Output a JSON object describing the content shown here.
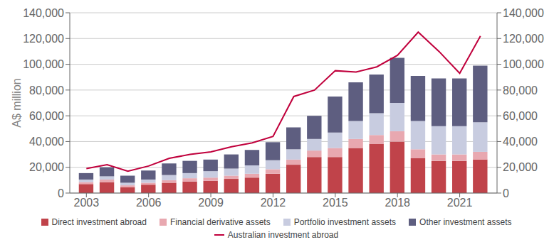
{
  "chart_data": {
    "type": "bar",
    "stacked": true,
    "x": [
      2003,
      2004,
      2005,
      2006,
      2007,
      2008,
      2009,
      2010,
      2011,
      2012,
      2013,
      2014,
      2015,
      2016,
      2017,
      2018,
      2019,
      2020,
      2021,
      2022
    ],
    "xlim": [
      2002.2,
      2022.8
    ],
    "xticks": [
      2003,
      2006,
      2009,
      2012,
      2015,
      2018,
      2021
    ],
    "ylabel": "A$ million",
    "ylim": [
      0,
      140000
    ],
    "yticks": [
      0,
      {
        "value": 20000,
        "label": "20,000"
      },
      {
        "value": 40000,
        "label": "40,000"
      },
      {
        "value": 60000,
        "label": "60,000"
      },
      {
        "value": 80000,
        "label": "80,000"
      },
      {
        "value": 100000,
        "label": "100,000"
      },
      {
        "value": 120000,
        "label": "120,000"
      },
      {
        "value": 140000,
        "label": "140,000"
      }
    ],
    "y2lim": [
      0,
      140000
    ],
    "y2ticks": [
      0,
      {
        "value": 20000,
        "label": "20,000"
      },
      {
        "value": 40000,
        "label": "40,000"
      },
      {
        "value": 60000,
        "label": "60,000"
      },
      {
        "value": 80000,
        "label": "80,000"
      },
      {
        "value": 100000,
        "label": "100,000"
      },
      {
        "value": 120000,
        "label": "120,000"
      },
      {
        "value": 140000,
        "label": "140,000"
      }
    ],
    "grid": true,
    "legend": "bottom",
    "series": [
      {
        "name": "Direct investment abroad",
        "type": "bar",
        "color": "#c0434a",
        "values": [
          7000,
          8500,
          4500,
          6500,
          8000,
          9000,
          9500,
          11000,
          12000,
          15000,
          22000,
          28000,
          28000,
          35000,
          38000,
          40000,
          27000,
          25000,
          25000,
          26000
        ]
      },
      {
        "name": "Financial derivative assets",
        "type": "bar",
        "color": "#e8a8b0",
        "values": [
          1500,
          2000,
          1500,
          1500,
          2000,
          2500,
          2500,
          2500,
          3000,
          3500,
          4000,
          5000,
          7000,
          7000,
          7000,
          8000,
          7000,
          5000,
          5000,
          6000
        ]
      },
      {
        "name": "Portfolio investment assets",
        "type": "bar",
        "color": "#c8cce0",
        "values": [
          2000,
          2500,
          2000,
          2500,
          4000,
          4000,
          5000,
          5500,
          6500,
          7000,
          8000,
          9000,
          12000,
          14000,
          17000,
          22000,
          22000,
          22000,
          22000,
          23000
        ]
      },
      {
        "name": "Other investment assets",
        "type": "bar",
        "color": "#5e5e80",
        "values": [
          5000,
          7000,
          5500,
          7000,
          9000,
          9500,
          9000,
          11000,
          12000,
          14000,
          17000,
          18000,
          28000,
          30000,
          30000,
          35000,
          35000,
          37000,
          37000,
          44000
        ]
      },
      {
        "name": "Australian investment abroad",
        "type": "line",
        "axis": "y2",
        "color": "#c0003c",
        "values": [
          19000,
          22000,
          17000,
          21000,
          27000,
          30000,
          32000,
          36000,
          39000,
          44000,
          75000,
          80000,
          95000,
          94000,
          98000,
          107000,
          125000,
          110000,
          93000,
          122000
        ]
      }
    ]
  }
}
